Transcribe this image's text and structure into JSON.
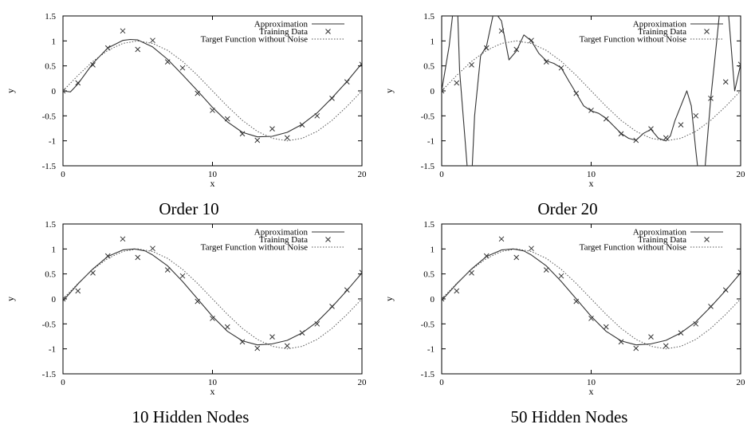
{
  "chart_data": [
    {
      "type": "line",
      "caption": "Order 10",
      "xlabel": "x",
      "ylabel": "y",
      "xlim": [
        0,
        20
      ],
      "ylim": [
        -1.5,
        1.5
      ],
      "xticks": [
        "0",
        "10",
        "20"
      ],
      "yticks": [
        "1.5",
        "1",
        "0.5",
        "0",
        "-0.5",
        "-1",
        "-1.5"
      ],
      "legend_position": "top-right",
      "series": [
        {
          "name": "Approximation",
          "style": "solid",
          "x": [
            0,
            0.5,
            1,
            2,
            3,
            4,
            4.5,
            5,
            6,
            7,
            8,
            9,
            10,
            11,
            12,
            13,
            14,
            15,
            16,
            17,
            18,
            19,
            20
          ],
          "y": [
            0.0,
            -0.02,
            0.14,
            0.55,
            0.86,
            1.01,
            1.03,
            1.02,
            0.88,
            0.63,
            0.32,
            0.0,
            -0.33,
            -0.62,
            -0.83,
            -0.92,
            -0.91,
            -0.83,
            -0.67,
            -0.44,
            -0.14,
            0.19,
            0.55
          ]
        },
        {
          "name": "Training Data",
          "style": "markers",
          "x": [
            0,
            1,
            2,
            3,
            4,
            5,
            6,
            7,
            8,
            9,
            10,
            11,
            12,
            13,
            14,
            15,
            16,
            17,
            18,
            19,
            20
          ],
          "y": [
            0.0,
            0.16,
            0.52,
            0.86,
            1.2,
            0.83,
            1.01,
            0.58,
            0.46,
            -0.05,
            -0.39,
            -0.56,
            -0.86,
            -0.99,
            -0.76,
            -0.94,
            -0.68,
            -0.5,
            -0.15,
            0.18,
            0.53
          ]
        },
        {
          "name": "Target Function without Noise",
          "style": "dotted",
          "x": [
            0,
            1,
            2,
            3,
            4,
            5,
            6,
            7,
            8,
            9,
            10,
            11,
            12,
            13,
            14,
            15,
            16,
            17,
            18,
            19,
            20
          ],
          "y": [
            0.0,
            0.31,
            0.59,
            0.81,
            0.95,
            1.0,
            0.95,
            0.81,
            0.59,
            0.31,
            0.0,
            -0.31,
            -0.59,
            -0.81,
            -0.95,
            -1.0,
            -0.95,
            -0.81,
            -0.59,
            -0.31,
            0.0
          ]
        }
      ]
    },
    {
      "type": "line",
      "caption": "Order 20",
      "xlabel": "x",
      "ylabel": "y",
      "xlim": [
        0,
        20
      ],
      "ylim": [
        -1.5,
        1.5
      ],
      "xticks": [
        "0",
        "10",
        "20"
      ],
      "yticks": [
        "1.5",
        "1",
        "0.5",
        "0",
        "-0.5",
        "-1",
        "-1.5"
      ],
      "legend_position": "top-right",
      "series": [
        {
          "name": "Approximation",
          "style": "solid",
          "x": [
            0,
            0.5,
            0.8,
            1.0,
            1.2,
            1.7,
            2.0,
            2.2,
            2.6,
            3.0,
            3.5,
            4.0,
            4.5,
            5.0,
            5.5,
            6.0,
            6.5,
            7.0,
            7.5,
            8.0,
            8.5,
            9.0,
            9.5,
            10.0,
            10.5,
            11.0,
            11.5,
            12.0,
            12.5,
            13.0,
            13.5,
            14.0,
            14.5,
            15.0,
            15.3,
            15.6,
            16.0,
            16.4,
            16.7,
            17.0,
            17.3,
            17.6,
            18.0,
            18.4,
            18.8,
            19.2,
            19.6,
            20.0
          ],
          "y": [
            0.0,
            0.9,
            1.7,
            2.2,
            0.4,
            -1.5,
            -1.8,
            -0.5,
            0.7,
            0.9,
            1.6,
            1.4,
            0.62,
            0.8,
            1.12,
            1.0,
            0.75,
            0.6,
            0.55,
            0.46,
            0.2,
            -0.05,
            -0.3,
            -0.4,
            -0.45,
            -0.55,
            -0.7,
            -0.85,
            -0.95,
            -0.99,
            -0.85,
            -0.77,
            -0.95,
            -1.0,
            -0.9,
            -0.6,
            -0.3,
            0.0,
            -0.3,
            -1.2,
            -2.0,
            -1.6,
            -0.15,
            1.0,
            2.2,
            1.5,
            0.0,
            0.53
          ]
        },
        {
          "name": "Training Data",
          "style": "markers",
          "x": [
            0,
            1,
            2,
            3,
            4,
            5,
            6,
            7,
            8,
            9,
            10,
            11,
            12,
            13,
            14,
            15,
            16,
            17,
            18,
            19,
            20
          ],
          "y": [
            0.0,
            0.16,
            0.52,
            0.86,
            1.2,
            0.83,
            1.01,
            0.58,
            0.46,
            -0.05,
            -0.39,
            -0.56,
            -0.86,
            -0.99,
            -0.76,
            -0.94,
            -0.68,
            -0.5,
            -0.15,
            0.18,
            0.53
          ]
        },
        {
          "name": "Target Function without Noise",
          "style": "dotted",
          "x": [
            0,
            1,
            2,
            3,
            4,
            5,
            6,
            7,
            8,
            9,
            10,
            11,
            12,
            13,
            14,
            15,
            16,
            17,
            18,
            19,
            20
          ],
          "y": [
            0.0,
            0.31,
            0.59,
            0.81,
            0.95,
            1.0,
            0.95,
            0.81,
            0.59,
            0.31,
            0.0,
            -0.31,
            -0.59,
            -0.81,
            -0.95,
            -1.0,
            -0.95,
            -0.81,
            -0.59,
            -0.31,
            0.0
          ]
        }
      ]
    },
    {
      "type": "line",
      "caption": "10 Hidden Nodes",
      "xlabel": "x",
      "ylabel": "y",
      "xlim": [
        0,
        20
      ],
      "ylim": [
        -1.5,
        1.5
      ],
      "xticks": [
        "0",
        "10",
        "20"
      ],
      "yticks": [
        "1.5",
        "1",
        "0.5",
        "0",
        "-0.5",
        "-1",
        "-1.5"
      ],
      "legend_position": "top-right",
      "series": [
        {
          "name": "Approximation",
          "style": "solid",
          "x": [
            0,
            1,
            2,
            3,
            4,
            4.8,
            5.5,
            6,
            7,
            8,
            9,
            10,
            11,
            12,
            13,
            14,
            15,
            16,
            17,
            18,
            19,
            20
          ],
          "y": [
            -0.04,
            0.3,
            0.6,
            0.85,
            0.98,
            1.0,
            0.96,
            0.88,
            0.66,
            0.35,
            0.0,
            -0.35,
            -0.65,
            -0.84,
            -0.92,
            -0.9,
            -0.83,
            -0.68,
            -0.46,
            -0.16,
            0.17,
            0.52
          ]
        },
        {
          "name": "Training Data",
          "style": "markers",
          "x": [
            0,
            1,
            2,
            3,
            4,
            5,
            6,
            7,
            8,
            9,
            10,
            11,
            12,
            13,
            14,
            15,
            16,
            17,
            18,
            19,
            20
          ],
          "y": [
            0.0,
            0.16,
            0.52,
            0.86,
            1.2,
            0.83,
            1.01,
            0.58,
            0.46,
            -0.05,
            -0.39,
            -0.56,
            -0.86,
            -0.99,
            -0.76,
            -0.94,
            -0.68,
            -0.5,
            -0.15,
            0.18,
            0.53
          ]
        },
        {
          "name": "Target Function without Noise",
          "style": "dotted",
          "x": [
            0,
            1,
            2,
            3,
            4,
            5,
            6,
            7,
            8,
            9,
            10,
            11,
            12,
            13,
            14,
            15,
            16,
            17,
            18,
            19,
            20
          ],
          "y": [
            0.0,
            0.31,
            0.59,
            0.81,
            0.95,
            1.0,
            0.95,
            0.81,
            0.59,
            0.31,
            0.0,
            -0.31,
            -0.59,
            -0.81,
            -0.95,
            -1.0,
            -0.95,
            -0.81,
            -0.59,
            -0.31,
            0.0
          ]
        }
      ]
    },
    {
      "type": "line",
      "caption": "50 Hidden Nodes",
      "xlabel": "x",
      "ylabel": "y",
      "xlim": [
        0,
        20
      ],
      "ylim": [
        -1.5,
        1.5
      ],
      "xticks": [
        "0",
        "10",
        "20"
      ],
      "yticks": [
        "1.5",
        "1",
        "0.5",
        "0",
        "-0.5",
        "-1",
        "-1.5"
      ],
      "legend_position": "top-right",
      "series": [
        {
          "name": "Approximation",
          "style": "solid",
          "x": [
            0,
            1,
            2,
            3,
            4,
            4.8,
            5.5,
            6,
            7,
            8,
            9,
            10,
            11,
            12,
            13,
            14,
            15,
            16,
            17,
            18,
            19,
            20
          ],
          "y": [
            -0.03,
            0.3,
            0.6,
            0.85,
            0.98,
            1.0,
            0.96,
            0.88,
            0.66,
            0.35,
            0.0,
            -0.35,
            -0.65,
            -0.84,
            -0.92,
            -0.9,
            -0.83,
            -0.68,
            -0.46,
            -0.16,
            0.17,
            0.52
          ]
        },
        {
          "name": "Training Data",
          "style": "markers",
          "x": [
            0,
            1,
            2,
            3,
            4,
            5,
            6,
            7,
            8,
            9,
            10,
            11,
            12,
            13,
            14,
            15,
            16,
            17,
            18,
            19,
            20
          ],
          "y": [
            0.0,
            0.16,
            0.52,
            0.86,
            1.2,
            0.83,
            1.01,
            0.58,
            0.46,
            -0.05,
            -0.39,
            -0.56,
            -0.86,
            -0.99,
            -0.76,
            -0.94,
            -0.68,
            -0.5,
            -0.15,
            0.18,
            0.53
          ]
        },
        {
          "name": "Target Function without Noise",
          "style": "dotted",
          "x": [
            0,
            1,
            2,
            3,
            4,
            5,
            6,
            7,
            8,
            9,
            10,
            11,
            12,
            13,
            14,
            15,
            16,
            17,
            18,
            19,
            20
          ],
          "y": [
            0.0,
            0.31,
            0.59,
            0.81,
            0.95,
            1.0,
            0.95,
            0.81,
            0.59,
            0.31,
            0.0,
            -0.31,
            -0.59,
            -0.81,
            -0.95,
            -1.0,
            -0.95,
            -0.81,
            -0.59,
            -0.31,
            0.0
          ]
        }
      ]
    }
  ]
}
